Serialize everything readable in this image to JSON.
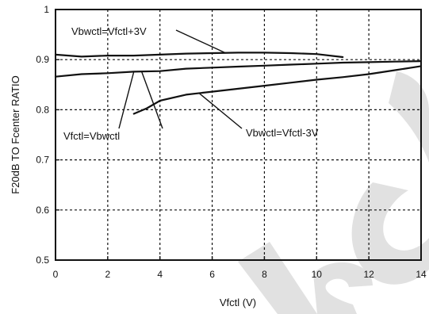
{
  "chart_data": {
    "type": "line",
    "xlabel": "Vfctl (V)",
    "ylabel": "F20dB TO Fcenter RATIO",
    "xlim": [
      0,
      14
    ],
    "ylim": [
      0.5,
      1.0
    ],
    "grid": true,
    "x_ticks": [
      "0",
      "2",
      "4",
      "6",
      "8",
      "10",
      "12",
      "14"
    ],
    "y_ticks": [
      "0.5",
      "0.6",
      "0.7",
      "0.8",
      "0.9",
      "1"
    ],
    "series": [
      {
        "name": "Vbwctl=Vfctl+3V",
        "x": [
          0,
          1,
          2,
          3,
          4,
          5,
          6,
          7,
          8,
          9,
          10,
          11
        ],
        "y": [
          0.91,
          0.906,
          0.908,
          0.908,
          0.91,
          0.912,
          0.913,
          0.914,
          0.914,
          0.913,
          0.911,
          0.905
        ]
      },
      {
        "name": "Vfctl=Vbwctl",
        "x": [
          0,
          1,
          2,
          3,
          4,
          5,
          6,
          7,
          8,
          9,
          10,
          11,
          12,
          13,
          14
        ],
        "y": [
          0.866,
          0.871,
          0.873,
          0.876,
          0.877,
          0.882,
          0.884,
          0.886,
          0.888,
          0.89,
          0.892,
          0.894,
          0.895,
          0.896,
          0.897
        ]
      },
      {
        "name": "Vbwctl=Vfctl-3V",
        "x": [
          3,
          3.5,
          4,
          5,
          6,
          7,
          8,
          9,
          10,
          11,
          12,
          13,
          14
        ],
        "y": [
          0.792,
          0.803,
          0.818,
          0.83,
          0.836,
          0.842,
          0.848,
          0.854,
          0.86,
          0.865,
          0.871,
          0.879,
          0.887
        ]
      }
    ],
    "annotations": [
      {
        "text": "Vbwctl=Vfctl+3V",
        "series": 0
      },
      {
        "text": "Vfctl=Vbwctl",
        "series": 1
      },
      {
        "text": "Vbwctl=Vfctl-3V",
        "series": 2
      }
    ]
  }
}
